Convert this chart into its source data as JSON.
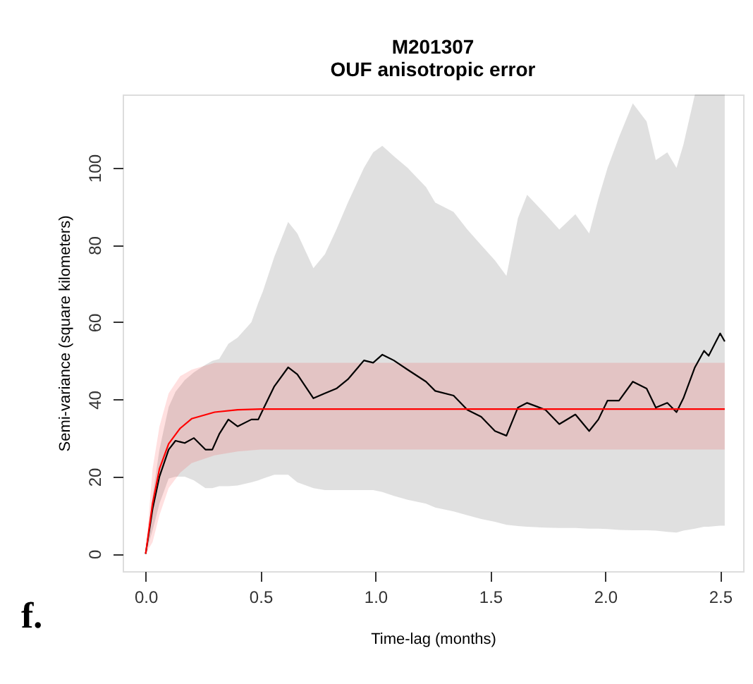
{
  "chart_data": {
    "type": "line",
    "title": [
      "M201307",
      "OUF anisotropic error"
    ],
    "xlabel": "Time-lag (months)",
    "ylabel": "Semi-variance (square kilometers)",
    "xlim": [
      -0.1,
      2.6
    ],
    "ylim": [
      -4.5,
      119
    ],
    "xticks": [
      {
        "value": 0,
        "label": "0.0"
      },
      {
        "value": 0.5,
        "label": "0.5"
      },
      {
        "value": 1,
        "label": "1.0"
      },
      {
        "value": 1.5,
        "label": "1.5"
      },
      {
        "value": 2,
        "label": "2.0"
      },
      {
        "value": 2.5,
        "label": "2.5"
      }
    ],
    "yticks": [
      0,
      20,
      40,
      60,
      80,
      100
    ],
    "grid": false,
    "marker": "none",
    "line_style": "solid",
    "annotations": [
      "f."
    ],
    "series": [
      {
        "color": "#000000",
        "x": [
          0,
          0.03,
          0.06,
          0.1,
          0.13,
          0.17,
          0.21,
          0.26,
          0.29,
          0.32,
          0.36,
          0.4,
          0.46,
          0.49,
          0.51,
          0.56,
          0.62,
          0.66,
          0.73,
          0.78,
          0.83,
          0.88,
          0.95,
          0.99,
          1.03,
          1.08,
          1.14,
          1.22,
          1.26,
          1.34,
          1.4,
          1.46,
          1.52,
          1.57,
          1.62,
          1.66,
          1.74,
          1.8,
          1.87,
          1.93,
          1.97,
          2.01,
          2.06,
          2.12,
          2.18,
          2.22,
          2.27,
          2.31,
          2.34,
          2.39,
          2.43,
          2.45,
          2.5,
          2.52
        ],
        "values": [
          0,
          11.6,
          20,
          27,
          29.3,
          28.7,
          30,
          27,
          27,
          31,
          34.8,
          33,
          34.8,
          34.8,
          37.3,
          43.4,
          48.3,
          46.5,
          40.3,
          41.6,
          42.8,
          45.2,
          50.1,
          49.5,
          51.6,
          50.1,
          47.7,
          44.6,
          42.2,
          41,
          37.3,
          35.5,
          31.8,
          30.6,
          37.9,
          39.1,
          37.3,
          33.6,
          36.1,
          31.8,
          34.8,
          39.7,
          39.7,
          44.6,
          42.8,
          37.9,
          39.1,
          36.7,
          40.3,
          48.3,
          52.6,
          51.3,
          57.1,
          55
        ],
        "lower": [
          0,
          6,
          13,
          19.5,
          20,
          20,
          19,
          17,
          17,
          17.5,
          17.5,
          17.7,
          18.5,
          19,
          19.5,
          20.5,
          20.5,
          18.5,
          17,
          16.5,
          16.5,
          16.5,
          16.5,
          16.5,
          16,
          15,
          14,
          13,
          12,
          11,
          10,
          9,
          8.3,
          7.5,
          7.2,
          7,
          6.8,
          6.7,
          6.7,
          6.5,
          6.5,
          6.4,
          6.2,
          6.1,
          6.1,
          6,
          5.7,
          5.5,
          6,
          6.5,
          7,
          7,
          7.3,
          7.3
        ],
        "upper": [
          0,
          15,
          27,
          38,
          42,
          45,
          47,
          49,
          50,
          50.5,
          54.4,
          56,
          60,
          65,
          68,
          77,
          86,
          83,
          74,
          77.6,
          84,
          91,
          100,
          104,
          105.7,
          103,
          100,
          95,
          91,
          88.6,
          84,
          80,
          76,
          72,
          87,
          93,
          88,
          84,
          88,
          83,
          92,
          100,
          108,
          116.7,
          112,
          102,
          104,
          100,
          106,
          119,
          119,
          119,
          119,
          119
        ]
      },
      {
        "color": "#ff0000",
        "x": [
          0,
          0.03,
          0.06,
          0.1,
          0.15,
          0.2,
          0.3,
          0.4,
          0.5,
          2.52
        ],
        "values": [
          0,
          13,
          22,
          28.5,
          32.5,
          35,
          36.7,
          37.3,
          37.5,
          37.5
        ],
        "lower": [
          0,
          3,
          10,
          17,
          21,
          23.5,
          25.5,
          26.5,
          27,
          27
        ],
        "upper": [
          0,
          22,
          33,
          41.6,
          46,
          47.7,
          49.5,
          49.5,
          49.5,
          49.5
        ]
      }
    ]
  }
}
